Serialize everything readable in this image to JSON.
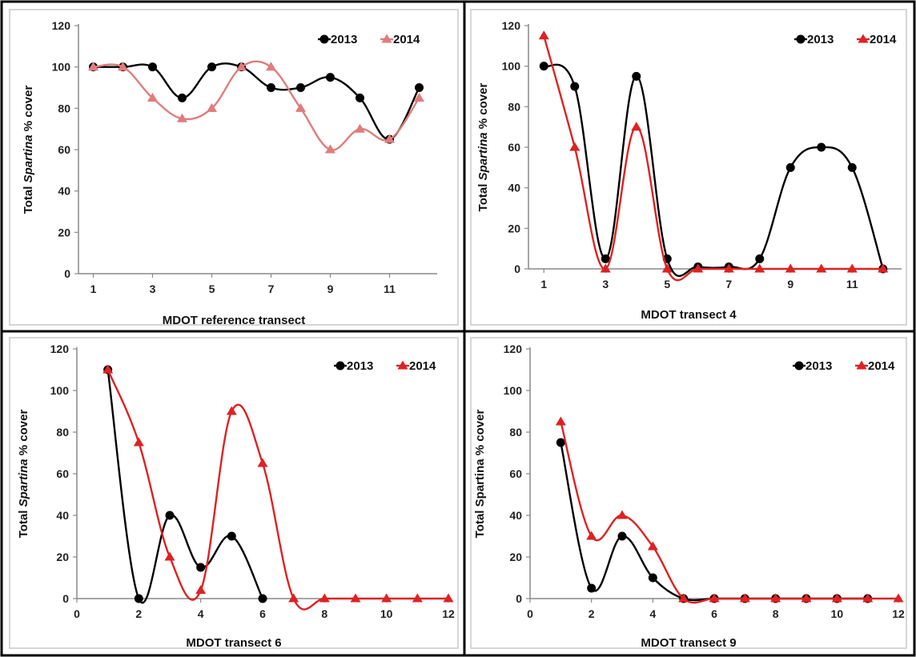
{
  "chart_data": [
    {
      "type": "line",
      "title": "",
      "xlabel": "MDOT reference transect",
      "ylabel_parts": [
        "Total ",
        "Spartina",
        " % cover"
      ],
      "ylim": [
        0,
        120
      ],
      "yticks": [
        0,
        20,
        40,
        60,
        80,
        100,
        120
      ],
      "xlim": [
        0.5,
        12.5
      ],
      "xticks": [
        1,
        3,
        5,
        7,
        9,
        11
      ],
      "smooth": true,
      "legend": "top-right",
      "series": [
        {
          "name": "2013",
          "color": "#000000",
          "marker": "circle",
          "x": [
            1,
            2,
            3,
            4,
            5,
            6,
            7,
            8,
            9,
            10,
            11,
            12
          ],
          "y": [
            100,
            100,
            100,
            85,
            100,
            100,
            90,
            90,
            95,
            85,
            65,
            90
          ]
        },
        {
          "name": "2014",
          "color": "#e07c7c",
          "marker": "triangle",
          "x": [
            1,
            2,
            3,
            4,
            5,
            6,
            7,
            8,
            9,
            10,
            11,
            12
          ],
          "y": [
            100,
            100,
            85,
            75,
            80,
            100,
            100,
            80,
            60,
            70,
            65,
            85
          ]
        }
      ]
    },
    {
      "type": "line",
      "title": "",
      "xlabel": "MDOT transect 4",
      "ylabel_parts": [
        "Total ",
        "Spartina",
        " % cover"
      ],
      "ylim": [
        0,
        120
      ],
      "yticks": [
        0,
        20,
        40,
        60,
        80,
        100,
        120
      ],
      "xlim": [
        0.5,
        12.5
      ],
      "xticks": [
        1,
        3,
        5,
        7,
        9,
        11
      ],
      "smooth": true,
      "legend": "top-right",
      "series": [
        {
          "name": "2013",
          "color": "#000000",
          "marker": "circle",
          "x": [
            1,
            2,
            3,
            4,
            5,
            6,
            7,
            8,
            9,
            10,
            11,
            12
          ],
          "y": [
            100,
            90,
            5,
            95,
            5,
            1,
            1,
            5,
            50,
            60,
            50,
            0
          ]
        },
        {
          "name": "2014",
          "color": "#dd2222",
          "marker": "triangle",
          "x": [
            1,
            2,
            3,
            4,
            5,
            6,
            7,
            8,
            9,
            10,
            11,
            12
          ],
          "y": [
            115,
            60,
            0,
            70,
            0,
            0,
            0,
            0,
            0,
            0,
            0,
            0
          ]
        }
      ]
    },
    {
      "type": "line",
      "title": "",
      "xlabel": "MDOT  transect 6",
      "ylabel_parts": [
        "Total ",
        "Spartina",
        " % cover"
      ],
      "ylim": [
        0,
        120
      ],
      "yticks": [
        0,
        20,
        40,
        60,
        80,
        100,
        120
      ],
      "xlim": [
        0,
        12
      ],
      "xticks": [
        0,
        2,
        4,
        6,
        8,
        10,
        12
      ],
      "smooth": true,
      "legend": "top-right",
      "series": [
        {
          "name": "2013",
          "color": "#000000",
          "marker": "circle",
          "x": [
            1,
            2,
            3,
            4,
            5,
            6
          ],
          "y": [
            110,
            0,
            40,
            15,
            30,
            0
          ]
        },
        {
          "name": "2014",
          "color": "#dd2222",
          "marker": "triangle",
          "x": [
            1,
            2,
            3,
            4,
            5,
            6,
            7,
            8,
            9,
            10,
            11,
            12
          ],
          "y": [
            110,
            75,
            20,
            4,
            90,
            65,
            0,
            0,
            0,
            0,
            0,
            0
          ]
        }
      ]
    },
    {
      "type": "line",
      "title": "",
      "xlabel": "MDOT transect 9",
      "ylabel_parts": [
        "Total Spartina % cover"
      ],
      "ylim": [
        0,
        120
      ],
      "yticks": [
        0,
        20,
        40,
        60,
        80,
        100,
        120
      ],
      "xlim": [
        0,
        12
      ],
      "xticks": [
        0,
        2,
        4,
        6,
        8,
        10,
        12
      ],
      "smooth": true,
      "legend": "top-right",
      "series": [
        {
          "name": "2013",
          "color": "#000000",
          "marker": "circle",
          "x": [
            1,
            2,
            3,
            4,
            5,
            6,
            7,
            8,
            9,
            10,
            11
          ],
          "y": [
            75,
            5,
            30,
            10,
            0,
            0,
            0,
            0,
            0,
            0,
            0
          ]
        },
        {
          "name": "2014",
          "color": "#dd2222",
          "marker": "triangle",
          "x": [
            1,
            2,
            3,
            4,
            5,
            6,
            7,
            8,
            9,
            10,
            11,
            12
          ],
          "y": [
            85,
            30,
            40,
            25,
            0,
            0,
            0,
            0,
            0,
            0,
            0,
            0
          ]
        }
      ]
    }
  ]
}
